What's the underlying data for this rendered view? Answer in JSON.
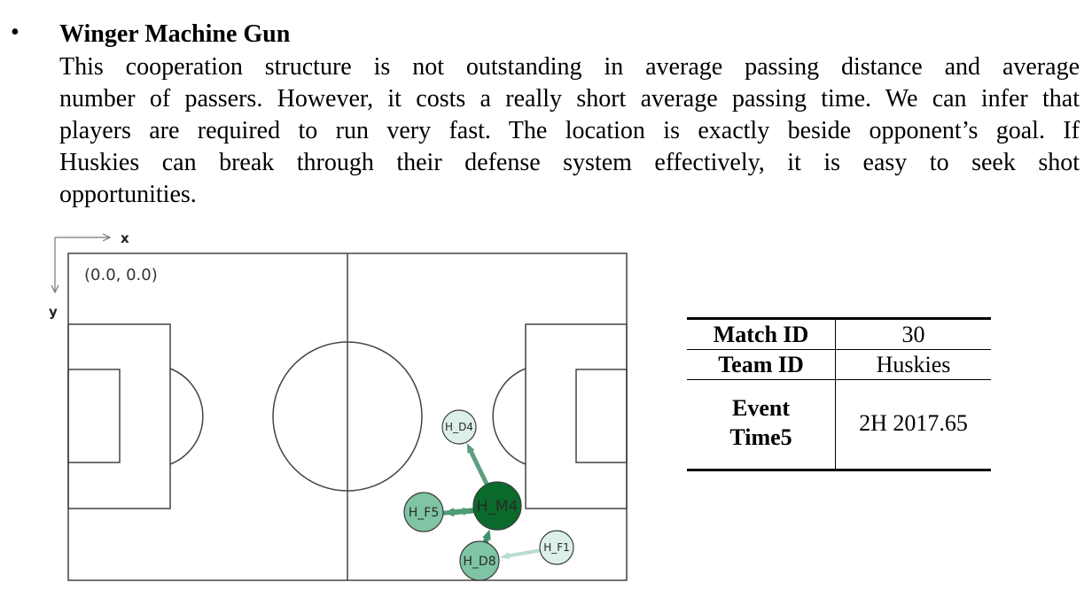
{
  "section": {
    "bullet": "•",
    "title": "Winger Machine Gun",
    "paragraph_lines": [
      "This cooperation structure is not outstanding in average passing distance and average",
      "number of passers. However, it costs a really short average passing time. We can infer that",
      "players are required to run very fast. The location is exactly beside opponent’s goal. If",
      "Huskies can break through their defense system effectively, it is easy to seek shot",
      "opportunities."
    ]
  },
  "figure": {
    "x_axis_label": "x",
    "y_axis_label": "y",
    "origin_label": "(0.0,  0.0)",
    "colors": {
      "pitch_line": "#444444",
      "pass_arrow": "#4f9a76",
      "light_node": "#dcefe9",
      "mid_node": "#7fc4a3",
      "dark_node": "#0a6a2b"
    },
    "players": [
      {
        "id": "H_D4",
        "label": "H_D4",
        "shade": "light"
      },
      {
        "id": "H_M4",
        "label": "H_M4",
        "shade": "dark"
      },
      {
        "id": "H_F5",
        "label": "H_F5",
        "shade": "mid"
      },
      {
        "id": "H_D8",
        "label": "H_D8",
        "shade": "mid"
      },
      {
        "id": "H_F1",
        "label": "H_F1",
        "shade": "light"
      }
    ],
    "passes": [
      {
        "from": "H_M4",
        "to": "H_D4"
      },
      {
        "from": "H_M4",
        "to": "H_F5"
      },
      {
        "from": "H_F5",
        "to": "H_M4"
      },
      {
        "from": "H_D8",
        "to": "H_M4"
      },
      {
        "from": "H_F1",
        "to": "H_D8"
      }
    ]
  },
  "table": {
    "rows": [
      {
        "key": "Match ID",
        "value": "30"
      },
      {
        "key": "Team ID",
        "value": "Huskies"
      },
      {
        "key_lines": [
          "Event",
          "Time5"
        ],
        "value": "2H 2017.65"
      }
    ]
  }
}
